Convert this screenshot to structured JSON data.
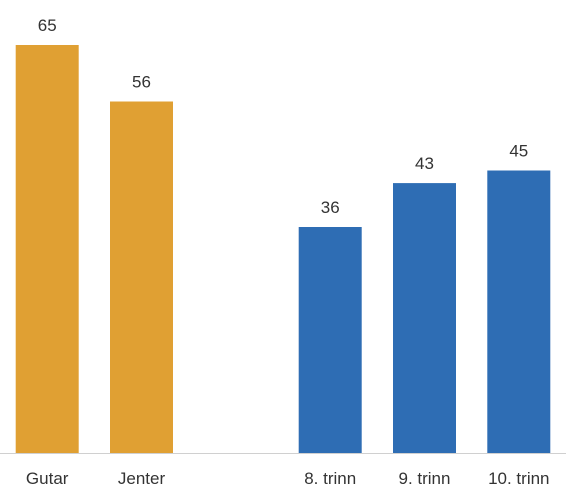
{
  "chart_data": {
    "type": "bar",
    "categories": [
      "Gutar",
      "Jenter",
      "",
      "8. trinn",
      "9. trinn",
      "10. trinn"
    ],
    "values": [
      65,
      56,
      null,
      36,
      43,
      45
    ],
    "value_labels": [
      "65",
      "56",
      "",
      "36",
      "43",
      "45"
    ],
    "bar_colors": [
      "#E0A033",
      "#E0A033",
      null,
      "#2E6DB4",
      "#2E6DB4",
      "#2E6DB4"
    ],
    "title": "",
    "xlabel": "",
    "ylabel": "",
    "ylim": [
      0,
      70
    ],
    "grid": false,
    "legend": "none"
  },
  "colors": {
    "baseline": "#D0D0D0",
    "label": "#333333"
  }
}
